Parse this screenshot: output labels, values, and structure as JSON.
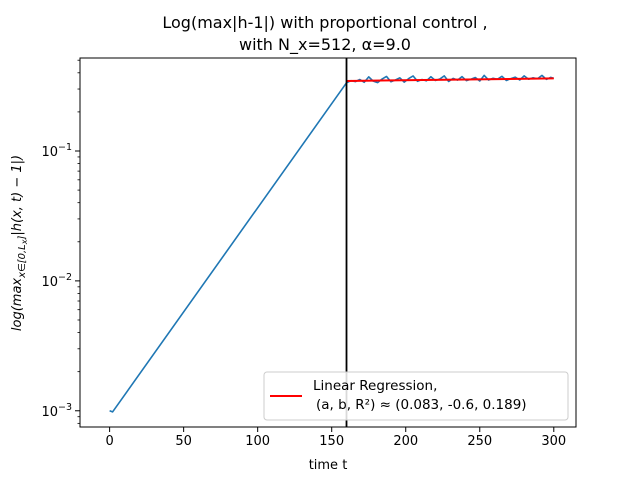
{
  "chart_data": {
    "type": "line",
    "title_lines": [
      "Log(max|h-1|) with proportional control ,",
      "with N_x=512, α=9.0"
    ],
    "xlabel": "time t",
    "ylabel": "log(max x∈[0,Lx] |h(x,t) − 1|)",
    "ylabel_parts": {
      "lead": "log(max",
      "sub": "x∈[0,L",
      "subsub": "x",
      "subclose": "]",
      "tail": "|h(x, t) − 1|)"
    },
    "xscale": "linear",
    "yscale": "log",
    "xlim": [
      -20,
      315
    ],
    "ylim": [
      0.00075,
      0.52
    ],
    "xticks": [
      0,
      50,
      100,
      150,
      200,
      250,
      300
    ],
    "xtick_labels": [
      "0",
      "50",
      "100",
      "150",
      "200",
      "250",
      "300"
    ],
    "yticks_major": [
      0.001,
      0.01,
      0.1
    ],
    "ytick_label_parts": [
      {
        "base": "10",
        "exp": "−3"
      },
      {
        "base": "10",
        "exp": "−2"
      },
      {
        "base": "10",
        "exp": "−1"
      }
    ],
    "grid": false,
    "vertical_line": {
      "x": 160,
      "color": "#000000"
    },
    "series": [
      {
        "color": "#1f77b4",
        "x": [
          0,
          2,
          160,
          163,
          166,
          169,
          172,
          175,
          178,
          181,
          184,
          187,
          190,
          193,
          196,
          199,
          202,
          205,
          208,
          211,
          214,
          217,
          220,
          223,
          226,
          229,
          232,
          235,
          238,
          241,
          244,
          247,
          250,
          253,
          256,
          259,
          262,
          265,
          268,
          271,
          274,
          277,
          280,
          283,
          286,
          289,
          292,
          295,
          298,
          300
        ],
        "y": [
          0.001,
          0.00098,
          0.335,
          0.348,
          0.342,
          0.355,
          0.338,
          0.372,
          0.345,
          0.336,
          0.358,
          0.375,
          0.341,
          0.352,
          0.366,
          0.339,
          0.361,
          0.378,
          0.344,
          0.355,
          0.347,
          0.373,
          0.349,
          0.358,
          0.379,
          0.343,
          0.362,
          0.351,
          0.374,
          0.348,
          0.357,
          0.368,
          0.346,
          0.382,
          0.352,
          0.363,
          0.357,
          0.376,
          0.349,
          0.361,
          0.37,
          0.352,
          0.379,
          0.357,
          0.366,
          0.36,
          0.382,
          0.356,
          0.369,
          0.362
        ]
      },
      {
        "name": "Linear Regression,\n (a, b, R²) ≈ (0.083, -0.6, 0.189)",
        "legend_lines": [
          "Linear Regression,",
          "(a, b, R²) ≈  (0.083, -0.6, 0.189)"
        ],
        "color": "#ff0000",
        "x": [
          160,
          300
        ],
        "y": [
          0.346,
          0.362
        ]
      }
    ],
    "legend_location": "lower right"
  }
}
